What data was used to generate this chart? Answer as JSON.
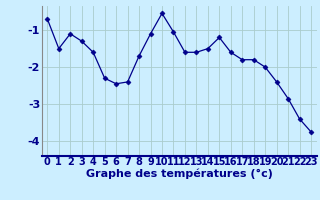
{
  "x": [
    0,
    1,
    2,
    3,
    4,
    5,
    6,
    7,
    8,
    9,
    10,
    11,
    12,
    13,
    14,
    15,
    16,
    17,
    18,
    19,
    20,
    21,
    22,
    23
  ],
  "y": [
    -0.7,
    -1.5,
    -1.1,
    -1.3,
    -1.6,
    -2.3,
    -2.45,
    -2.4,
    -1.7,
    -1.1,
    -0.55,
    -1.05,
    -1.6,
    -1.6,
    -1.5,
    -1.2,
    -1.6,
    -1.8,
    -1.8,
    -2.0,
    -2.4,
    -2.85,
    -3.4,
    -3.75
  ],
  "xlabel": "Graphe des températures (°c)",
  "ylim": [
    -4.4,
    -0.35
  ],
  "xlim": [
    -0.5,
    23.5
  ],
  "yticks": [
    -4,
    -3,
    -2,
    -1
  ],
  "xticks": [
    0,
    1,
    2,
    3,
    4,
    5,
    6,
    7,
    8,
    9,
    10,
    11,
    12,
    13,
    14,
    15,
    16,
    17,
    18,
    19,
    20,
    21,
    22,
    23
  ],
  "line_color": "#00008B",
  "marker": "D",
  "marker_size": 2.5,
  "bg_color": "#cceeff",
  "grid_color": "#aacccc",
  "xlabel_fontsize": 8,
  "tick_fontsize": 7,
  "ytick_fontsize": 8
}
